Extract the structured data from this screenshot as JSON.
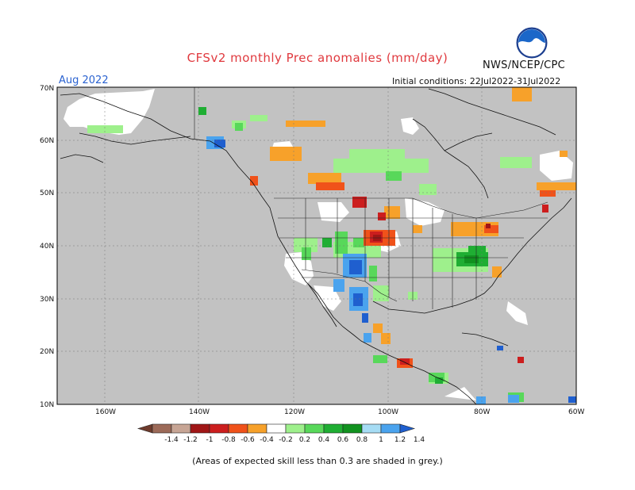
{
  "header": {
    "title": "CFSv2 monthly Prec anomalies (mm/day)",
    "agency": "NWS/NCEP/CPC",
    "month": "Aug 2022",
    "initial_conditions": "Initial conditions: 22Jul2022-31Jul2022"
  },
  "map": {
    "latitude_labels": [
      "70N",
      "60N",
      "50N",
      "40N",
      "30N",
      "20N",
      "10N"
    ],
    "longitude_labels": [
      "160W",
      "140W",
      "120W",
      "100W",
      "80W",
      "60W"
    ],
    "skill_mask_color": "#c2c2c2",
    "land_color": "#ffffff",
    "ocean_color": "#c2c2c2"
  },
  "colorbar": {
    "labels": [
      "-1.4",
      "-1.2",
      "-1",
      "-0.8",
      "-0.6",
      "-0.4",
      "-0.2",
      "0.2",
      "0.4",
      "0.6",
      "0.8",
      "1",
      "1.2",
      "1.4"
    ],
    "colors": [
      "#6e3b2c",
      "#9c6a58",
      "#c7a595",
      "#a01616",
      "#cc1e1e",
      "#f0521a",
      "#f7a12a",
      "#ffffff",
      "#9ef08c",
      "#58d85a",
      "#1fae33",
      "#11921f",
      "#a6dcf4",
      "#4aa3ee",
      "#1f5fcf"
    ]
  },
  "footnote": "(Areas of expected skill less than 0.3 are shaded in grey.)"
}
